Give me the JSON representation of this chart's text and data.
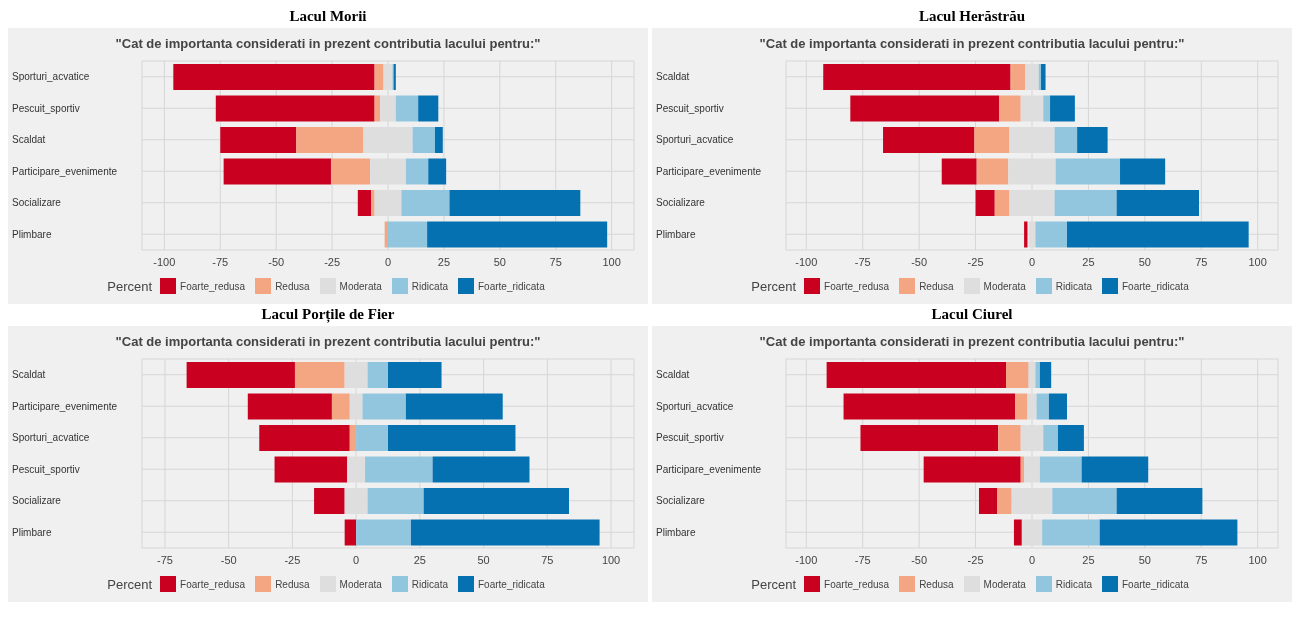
{
  "chart_data": [
    {
      "type": "bar",
      "orientation": "horizontal",
      "title": "Lacul Morii",
      "subtitle": "\"Cat de importanta considerati in prezent contributia lacului pentru:\"",
      "legend_title": "Percent",
      "legend": "bottom",
      "grid": true,
      "xlim": [
        -110,
        110
      ],
      "xticks": [
        -100,
        -75,
        -50,
        -25,
        0,
        25,
        50,
        75,
        100
      ],
      "categories": [
        "Sporturi_acvatice",
        "Pescuit_sportiv",
        "Scaldat",
        "Participare_evenimente",
        "Socializare",
        "Plimbare"
      ],
      "series": [
        {
          "name": "Foarte_redusa",
          "color": "#ca0020",
          "base": [
            -96,
            -77,
            -75,
            -73.5,
            -13.5,
            null
          ],
          "values": [
            90,
            71,
            34,
            48,
            6,
            null
          ]
        },
        {
          "name": "Redusa",
          "color": "#f4a582",
          "base": [
            -6,
            -6,
            -41,
            -25.5,
            -7.5,
            -1.5
          ],
          "values": [
            4,
            2.5,
            30,
            17.5,
            1.5,
            1.5
          ]
        },
        {
          "name": "Moderata",
          "color": "#dedede",
          "base": [
            -2,
            -3.5,
            -11,
            -8,
            -6,
            null
          ],
          "values": [
            4,
            7,
            22,
            16,
            12,
            null
          ]
        },
        {
          "name": "Ridicata",
          "color": "#92c5de",
          "base": [
            2,
            3.5,
            11,
            8,
            6,
            0
          ],
          "values": [
            0.5,
            10,
            10,
            10,
            21.5,
            17.5
          ]
        },
        {
          "name": "Foarte_ridicata",
          "color": "#0571b0",
          "base": [
            2.5,
            13.5,
            21,
            18,
            27.5,
            17.5
          ],
          "values": [
            1,
            9,
            3.5,
            8,
            58.5,
            80.5
          ]
        }
      ]
    },
    {
      "type": "bar",
      "orientation": "horizontal",
      "title": "Lacul Herăstrău",
      "subtitle": "\"Cat de importanta considerati in prezent contributia lacului pentru:\"",
      "legend_title": "Percent",
      "legend": "bottom",
      "grid": true,
      "xlim": [
        -109,
        109
      ],
      "xticks": [
        -100,
        -75,
        -50,
        -25,
        0,
        25,
        50,
        75,
        100
      ],
      "categories": [
        "Scaldat",
        "Pescuit_sportiv",
        "Sporturi_acvatice",
        "Participare_evenimente",
        "Socializare",
        "Plimbare"
      ],
      "series": [
        {
          "name": "Foarte_redusa",
          "color": "#ca0020",
          "base": [
            -92.5,
            -80.5,
            -66,
            -40,
            -25,
            -3.5
          ],
          "values": [
            83,
            66,
            40.5,
            15.5,
            8.5,
            1.5
          ]
        },
        {
          "name": "Redusa",
          "color": "#f4a582",
          "base": [
            -9.5,
            -14.5,
            -25.5,
            -24.5,
            -16.5,
            null
          ],
          "values": [
            6.5,
            9.5,
            15.5,
            14,
            6.5,
            null
          ]
        },
        {
          "name": "Moderata",
          "color": "#dedede",
          "base": [
            -3,
            -5,
            -10,
            -10.5,
            -10,
            -1.5
          ],
          "values": [
            6,
            10,
            20,
            21,
            20,
            3
          ]
        },
        {
          "name": "Ridicata",
          "color": "#92c5de",
          "base": [
            3,
            5,
            10,
            10.5,
            10,
            1.5
          ],
          "values": [
            1,
            3,
            10,
            28.5,
            27.5,
            14
          ]
        },
        {
          "name": "Foarte_ridicata",
          "color": "#0571b0",
          "base": [
            4,
            8,
            20,
            39,
            37.5,
            15.5
          ],
          "values": [
            2,
            11,
            13.5,
            20,
            36.5,
            80.5
          ]
        }
      ]
    },
    {
      "type": "bar",
      "orientation": "horizontal",
      "title": "Lacul Porțile de Fier",
      "subtitle": "\"Cat de importanta considerati in prezent contributia lacului pentru:\"",
      "legend_title": "Percent",
      "legend": "bottom",
      "grid": true,
      "xlim": [
        -84,
        109
      ],
      "xticks": [
        -75,
        -50,
        -25,
        0,
        25,
        50,
        75,
        100
      ],
      "categories": [
        "Scaldat",
        "Participare_evenimente",
        "Sporturi_acvatice",
        "Pescuit_sportiv",
        "Socializare",
        "Plimbare"
      ],
      "series": [
        {
          "name": "Foarte_redusa",
          "color": "#ca0020",
          "base": [
            -66.5,
            -42.5,
            -38,
            -32,
            -16.5,
            -4.5
          ],
          "values": [
            42.5,
            33,
            35.5,
            28.5,
            12,
            4.5
          ]
        },
        {
          "name": "Redusa",
          "color": "#f4a582",
          "base": [
            -24,
            -9.5,
            -2.5,
            null,
            null,
            null
          ],
          "values": [
            19.5,
            7,
            2.5,
            null,
            null,
            null
          ]
        },
        {
          "name": "Moderata",
          "color": "#dedede",
          "base": [
            -4.5,
            -2.5,
            null,
            -3.5,
            -4.5,
            null
          ],
          "values": [
            9,
            5,
            null,
            7,
            9,
            null
          ]
        },
        {
          "name": "Ridicata",
          "color": "#92c5de",
          "base": [
            4.5,
            2.5,
            0,
            3.5,
            4.5,
            0
          ],
          "values": [
            8,
            17,
            12.5,
            26.5,
            22,
            21.5
          ]
        },
        {
          "name": "Foarte_ridicata",
          "color": "#0571b0",
          "base": [
            12.5,
            19.5,
            12.5,
            30,
            26.5,
            21.5
          ],
          "values": [
            21,
            38,
            50,
            38,
            57,
            74
          ]
        }
      ]
    },
    {
      "type": "bar",
      "orientation": "horizontal",
      "title": "Lacul Ciurel",
      "subtitle": "\"Cat de importanta considerati in prezent contributia lacului pentru:\"",
      "legend_title": "Percent",
      "legend": "bottom",
      "grid": true,
      "xlim": [
        -109,
        109
      ],
      "xticks": [
        -100,
        -75,
        -50,
        -25,
        0,
        25,
        50,
        75,
        100
      ],
      "categories": [
        "Scaldat",
        "Sporturi_acvatice",
        "Pescuit_sportiv",
        "Participare_evenimente",
        "Socializare",
        "Plimbare"
      ],
      "series": [
        {
          "name": "Foarte_redusa",
          "color": "#ca0020",
          "base": [
            -91,
            -83.5,
            -76,
            -48,
            -23.5,
            -8
          ],
          "values": [
            79.5,
            76,
            61,
            43,
            8,
            3.5
          ]
        },
        {
          "name": "Redusa",
          "color": "#f4a582",
          "base": [
            -11.5,
            -7.5,
            -15,
            -5,
            -15.5,
            null
          ],
          "values": [
            10,
            5.5,
            10,
            1.5,
            6.5,
            null
          ]
        },
        {
          "name": "Moderata",
          "color": "#dedede",
          "base": [
            -1.5,
            -2,
            -5,
            -3.5,
            -9,
            -4.5
          ],
          "values": [
            3,
            4,
            10,
            7,
            18,
            9
          ]
        },
        {
          "name": "Ridicata",
          "color": "#92c5de",
          "base": [
            1.5,
            2,
            5,
            3.5,
            9,
            4.5
          ],
          "values": [
            2,
            5.5,
            6.5,
            18.5,
            28.5,
            25.5
          ]
        },
        {
          "name": "Foarte_ridicata",
          "color": "#0571b0",
          "base": [
            3.5,
            7.5,
            11.5,
            22,
            37.5,
            30
          ],
          "values": [
            5,
            8,
            11.5,
            29.5,
            38,
            61
          ]
        }
      ]
    }
  ]
}
